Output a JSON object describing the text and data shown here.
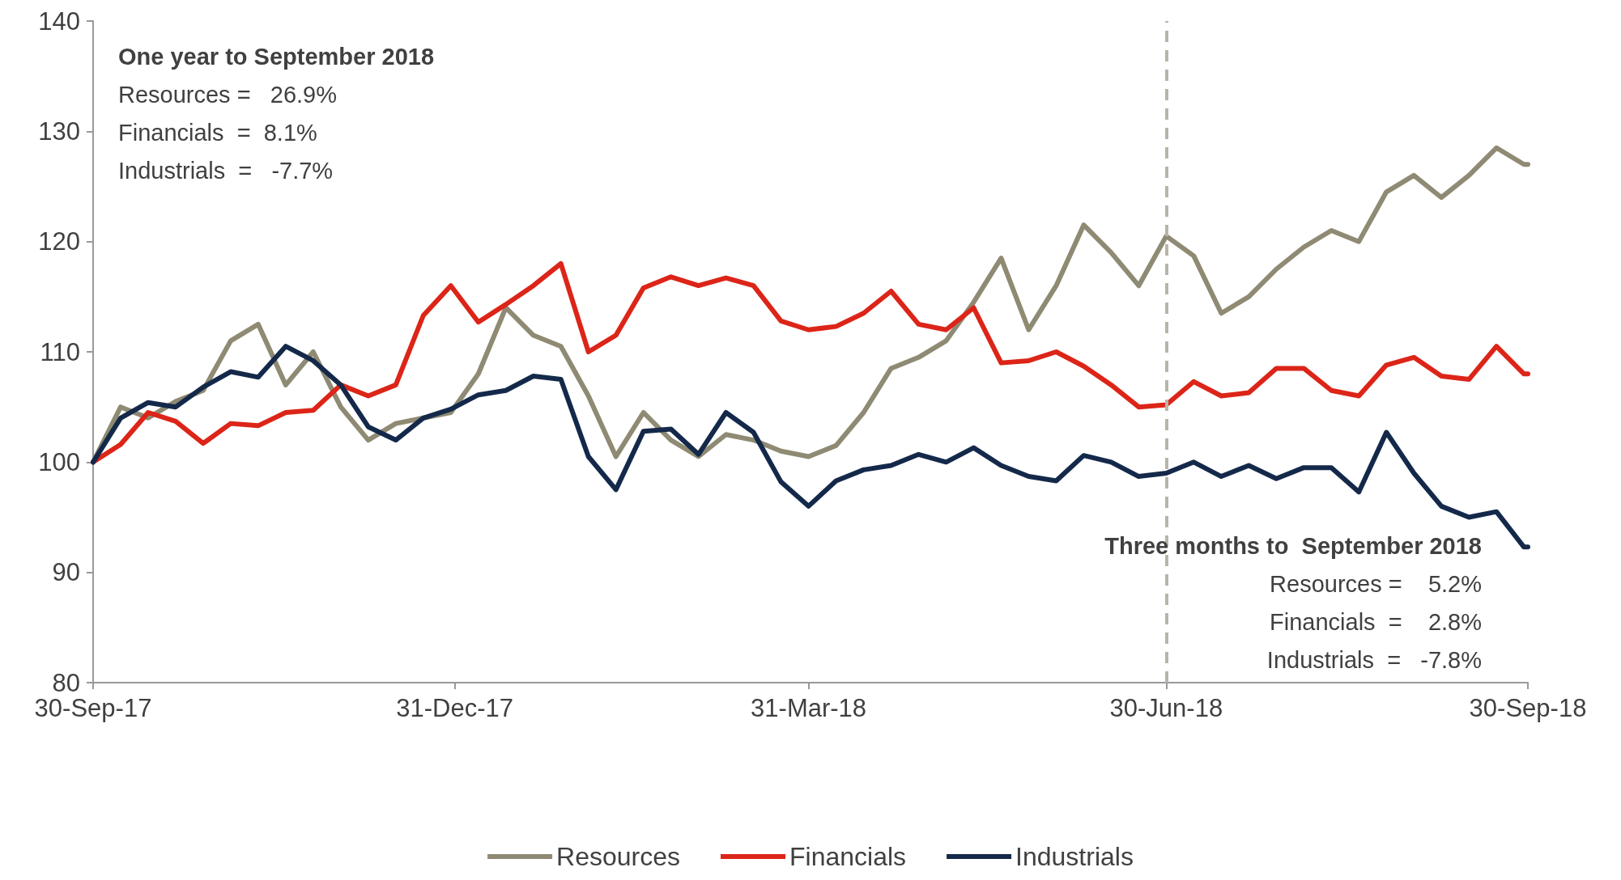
{
  "chart_data": {
    "type": "line",
    "x": [
      "2017-09-30",
      "2017-10-07",
      "2017-10-14",
      "2017-10-21",
      "2017-10-28",
      "2017-11-04",
      "2017-11-11",
      "2017-11-18",
      "2017-11-25",
      "2017-12-02",
      "2017-12-09",
      "2017-12-16",
      "2017-12-23",
      "2017-12-30",
      "2018-01-06",
      "2018-01-13",
      "2018-01-20",
      "2018-01-27",
      "2018-02-03",
      "2018-02-10",
      "2018-02-17",
      "2018-02-24",
      "2018-03-03",
      "2018-03-10",
      "2018-03-17",
      "2018-03-24",
      "2018-03-31",
      "2018-04-07",
      "2018-04-14",
      "2018-04-21",
      "2018-04-28",
      "2018-05-05",
      "2018-05-12",
      "2018-05-19",
      "2018-05-26",
      "2018-06-02",
      "2018-06-09",
      "2018-06-16",
      "2018-06-23",
      "2018-06-30",
      "2018-07-07",
      "2018-07-14",
      "2018-07-21",
      "2018-07-28",
      "2018-08-04",
      "2018-08-11",
      "2018-08-18",
      "2018-08-25",
      "2018-09-01",
      "2018-09-08",
      "2018-09-15",
      "2018-09-22",
      "2018-09-29",
      "2018-09-30"
    ],
    "series": [
      {
        "name": "Resources",
        "color": "#8f8a73",
        "values": [
          100,
          105,
          104,
          105.5,
          106.5,
          111,
          112.5,
          107,
          110,
          105,
          102,
          103.5,
          104,
          104.5,
          108,
          114,
          111.5,
          110.5,
          106,
          100.5,
          104.5,
          102,
          100.5,
          102.5,
          102,
          101,
          100.5,
          101.5,
          104.5,
          108.5,
          109.5,
          111,
          114.5,
          118.5,
          112,
          116,
          121.5,
          119,
          116,
          120.5,
          118.7,
          113.5,
          115,
          117.5,
          119.5,
          121,
          120,
          124.5,
          126,
          124,
          126,
          128.5,
          127,
          127
        ]
      },
      {
        "name": "Financials",
        "color": "#dc2518",
        "values": [
          100,
          101.6,
          104.5,
          103.7,
          101.7,
          103.5,
          103.3,
          104.5,
          104.7,
          107,
          106,
          107,
          113.3,
          116,
          112.7,
          114.3,
          116,
          118,
          110,
          111.5,
          115.8,
          116.8,
          116,
          116.7,
          116,
          112.8,
          112,
          112.3,
          113.5,
          115.5,
          112.5,
          112,
          114,
          109,
          109.2,
          110,
          108.7,
          107,
          105,
          105.2,
          107.3,
          106,
          106.3,
          108.5,
          108.5,
          106.5,
          106,
          108.8,
          109.5,
          107.8,
          107.5,
          110.5,
          108,
          108
        ]
      },
      {
        "name": "Industrials",
        "color": "#14294a",
        "values": [
          100,
          104,
          105.4,
          105,
          106.8,
          108.2,
          107.7,
          110.5,
          109.2,
          107,
          103.2,
          102,
          104,
          104.8,
          106.1,
          106.5,
          107.8,
          107.5,
          100.5,
          97.5,
          102.8,
          103,
          100.7,
          104.5,
          102.7,
          98.2,
          96,
          98.3,
          99.3,
          99.7,
          100.7,
          100,
          101.3,
          99.7,
          98.7,
          98.3,
          100.6,
          100,
          98.7,
          99,
          100,
          98.7,
          99.7,
          98.5,
          99.5,
          99.5,
          97.3,
          102.7,
          99,
          96,
          95,
          95.5,
          92.3,
          92.3
        ]
      }
    ],
    "xlim": [
      "2017-09-30",
      "2018-09-30"
    ],
    "xticks": [
      {
        "value": "2017-09-30",
        "label": "30-Sep-17"
      },
      {
        "value": "2017-12-31",
        "label": "31-Dec-17"
      },
      {
        "value": "2018-03-31",
        "label": "31-Mar-18"
      },
      {
        "value": "2018-06-30",
        "label": "30-Jun-18"
      },
      {
        "value": "2018-09-30",
        "label": "30-Sep-18"
      }
    ],
    "ylim": [
      80,
      140
    ],
    "yticks": [
      80,
      90,
      100,
      110,
      120,
      130,
      140
    ],
    "ref_lines": [
      {
        "axis": "x",
        "value": "2018-06-30",
        "color": "#b8b5a8",
        "line_style": "dashed"
      }
    ],
    "annotations": [
      "One year to September 2018",
      "Resources =   26.9%",
      "Financials  =  8.1%",
      "Industrials  =   -7.7%",
      "Three months to  September 2018",
      "Resources =    5.2%",
      "Financials  =    2.8%",
      "Industrials  =   -7.8%"
    ],
    "legend": "bottom",
    "marker": "none",
    "line_style": "solid",
    "grid": false
  }
}
